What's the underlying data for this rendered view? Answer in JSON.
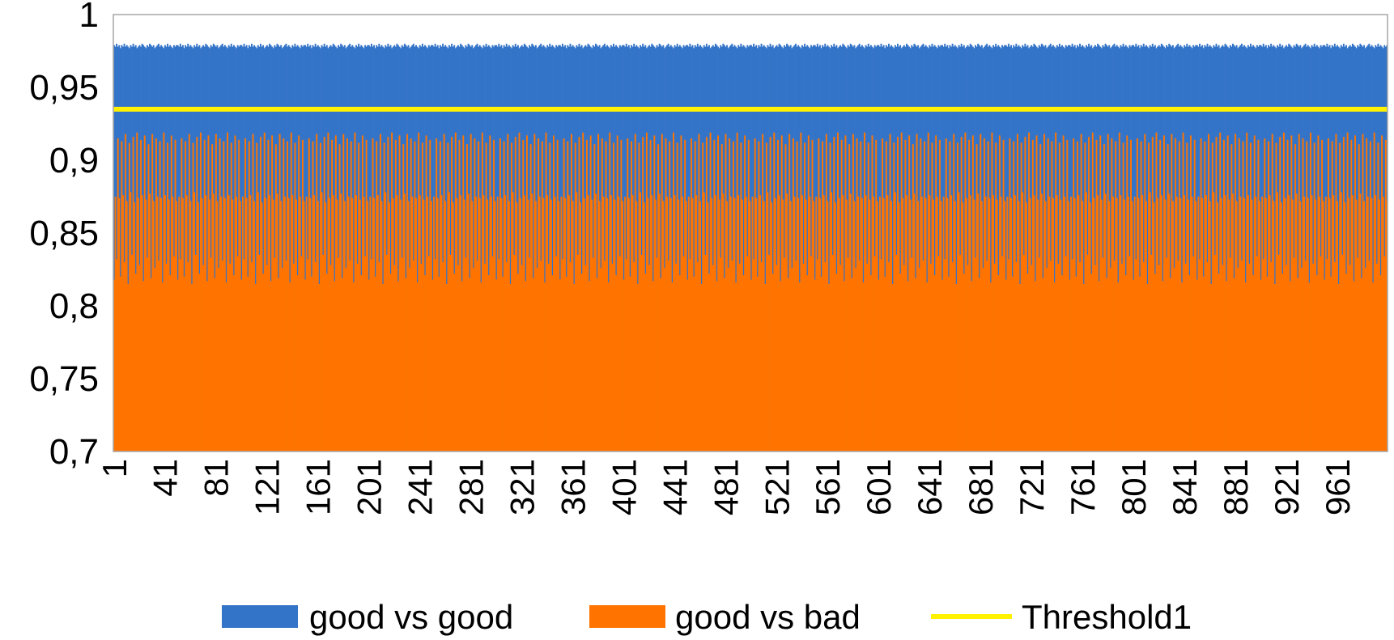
{
  "chart_data": {
    "type": "bar",
    "x_range": [
      1,
      1000
    ],
    "ylim": [
      0.7,
      1.0
    ],
    "y_ticks": [
      "0,7",
      "0,75",
      "0,8",
      "0,85",
      "0,9",
      "0,95",
      "1"
    ],
    "y_tick_values": [
      0.7,
      0.75,
      0.8,
      0.85,
      0.9,
      0.95,
      1.0
    ],
    "x_ticks": [
      "1",
      "41",
      "81",
      "121",
      "161",
      "201",
      "241",
      "281",
      "321",
      "361",
      "401",
      "441",
      "481",
      "521",
      "561",
      "601",
      "641",
      "681",
      "721",
      "761",
      "801",
      "841",
      "881",
      "921",
      "961"
    ],
    "x_tick_values": [
      1,
      41,
      81,
      121,
      161,
      201,
      241,
      281,
      321,
      361,
      401,
      441,
      481,
      521,
      561,
      601,
      641,
      681,
      721,
      761,
      801,
      841,
      881,
      921,
      961
    ],
    "grid": false,
    "legend_position": "bottom",
    "series": [
      {
        "name": "good vs good",
        "color": "#3474C8",
        "values": [
          0.979,
          0.978,
          0.98,
          0.978,
          0.979,
          0.977,
          0.979,
          0.978,
          0.98,
          0.978,
          0.979,
          0.978,
          0.977,
          0.979,
          0.978,
          0.98,
          0.978,
          0.979,
          0.977,
          0.978,
          0.979,
          0.978,
          0.98,
          0.979,
          0.978,
          0.977,
          0.979,
          0.978,
          0.98,
          0.979,
          0.978,
          0.979,
          0.977,
          0.978,
          0.979,
          0.98,
          0.978,
          0.979,
          0.978,
          0.977,
          0.979,
          0.978,
          0.98,
          0.978,
          0.979,
          0.978,
          0.977,
          0.979,
          0.978,
          0.979
        ]
      },
      {
        "name": "good vs bad",
        "color": "#FF7400",
        "values": [
          0.818,
          0.875,
          0.832,
          0.915,
          0.874,
          0.82,
          0.913,
          0.876,
          0.83,
          0.918,
          0.872,
          0.815,
          0.912,
          0.878,
          0.835,
          0.916,
          0.871,
          0.822,
          0.919,
          0.874,
          0.828,
          0.914,
          0.876,
          0.817,
          0.917,
          0.873,
          0.833,
          0.911,
          0.877,
          0.819,
          0.918,
          0.872,
          0.826,
          0.915,
          0.875,
          0.831,
          0.913,
          0.874,
          0.816,
          0.919,
          0.876,
          0.829,
          0.912,
          0.873,
          0.821,
          0.917,
          0.875,
          0.834,
          0.914,
          0.872
        ]
      },
      {
        "name": "Threshold1",
        "color": "#FFF200",
        "type": "line",
        "value": 0.935
      }
    ]
  }
}
